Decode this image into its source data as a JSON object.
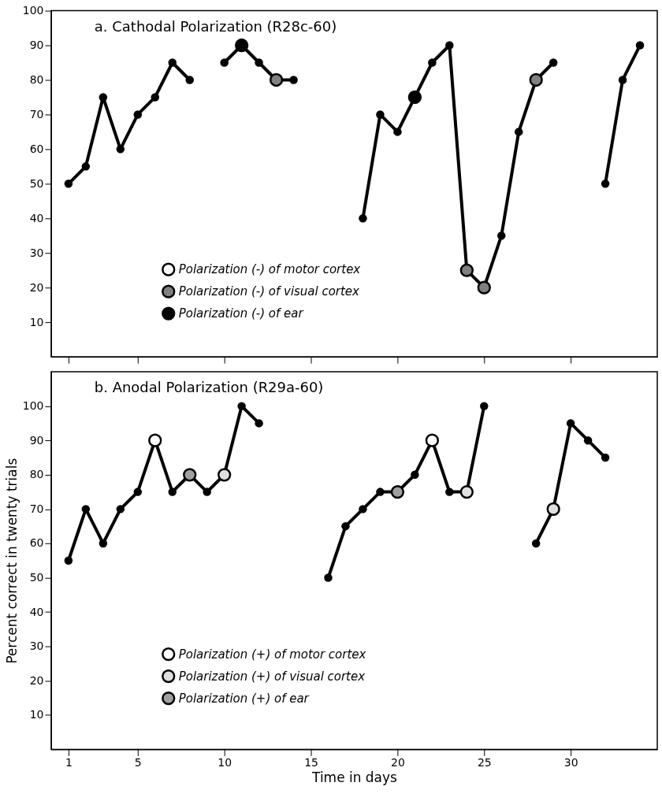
{
  "chart_data": [
    {
      "type": "line",
      "title": "a. Cathodal Polarization (R28c-60)",
      "x": [
        1,
        2,
        3,
        4,
        5,
        6,
        7,
        8,
        9,
        10,
        11,
        12,
        13,
        14,
        15,
        16,
        17,
        18,
        19,
        20,
        21,
        22,
        23,
        24,
        25,
        26,
        27,
        28,
        29,
        30,
        31,
        32,
        33,
        34
      ],
      "xlim": [
        0,
        35
      ],
      "xticks": [
        1,
        5,
        10,
        15,
        20,
        25,
        30
      ],
      "ylim": [
        0,
        100
      ],
      "yticks": [
        10,
        20,
        30,
        40,
        50,
        60,
        70,
        80,
        90,
        100
      ],
      "tick_labels": "y",
      "grid": false,
      "legend": "bottom left",
      "series": [
        {
          "type": "line",
          "color": "#000000",
          "marker": "circle",
          "values": [
            50,
            55,
            75,
            60,
            70,
            75,
            85,
            80,
            null,
            85,
            90,
            85,
            80,
            80,
            null,
            null,
            null,
            40,
            70,
            65,
            75,
            85,
            90,
            25,
            20,
            35,
            65,
            80,
            85,
            null,
            null,
            50,
            80,
            90
          ]
        },
        {
          "type": "scatter",
          "name": "Polarization (-) of motor cortex",
          "color": "#ffffff",
          "marker": "circle",
          "values": [
            null,
            null,
            null,
            null,
            null,
            null,
            null,
            null,
            null,
            null,
            null,
            null,
            null,
            null,
            null,
            null,
            null,
            null,
            null,
            null,
            null,
            null,
            null,
            null,
            null,
            null,
            null,
            null,
            null,
            null,
            null,
            null,
            null,
            null
          ]
        },
        {
          "type": "scatter",
          "name": "Polarization (-) of visual cortex",
          "color": "#808080",
          "marker": "circle",
          "x": [
            13,
            24,
            25,
            28
          ],
          "values": [
            80,
            25,
            20,
            80
          ]
        },
        {
          "type": "scatter",
          "name": "Polarization (-) of ear",
          "color": "#000000",
          "marker": "circle",
          "x": [
            11,
            21
          ],
          "values": [
            90,
            75
          ]
        }
      ]
    },
    {
      "type": "line",
      "title": "b. Anodal Polarization (R29a-60)",
      "xlabel": "Time in days",
      "ylabel": "Percent correct in twenty trials",
      "x": [
        1,
        2,
        3,
        4,
        5,
        6,
        7,
        8,
        9,
        10,
        11,
        12,
        13,
        14,
        15,
        16,
        17,
        18,
        19,
        20,
        21,
        22,
        23,
        24,
        25,
        26,
        27,
        28,
        29,
        30,
        31,
        32
      ],
      "xlim": [
        0,
        35
      ],
      "xticks": [
        1,
        5,
        10,
        15,
        20,
        25,
        30
      ],
      "ylim": [
        0,
        110
      ],
      "yticks": [
        10,
        20,
        30,
        40,
        50,
        60,
        70,
        80,
        90,
        100
      ],
      "grid": false,
      "legend": "bottom left",
      "series": [
        {
          "type": "line",
          "color": "#000000",
          "marker": "circle",
          "values": [
            55,
            70,
            60,
            70,
            75,
            90,
            75,
            80,
            75,
            80,
            100,
            95,
            null,
            null,
            null,
            50,
            65,
            70,
            75,
            75,
            80,
            90,
            75,
            75,
            100,
            null,
            null,
            60,
            70,
            95,
            90,
            85
          ]
        },
        {
          "type": "scatter",
          "name": "Polarization (+) of motor cortex",
          "color": "#ffffff",
          "marker": "circle",
          "x": [
            6,
            22
          ],
          "values": [
            90,
            90
          ]
        },
        {
          "type": "scatter",
          "name": "Polarization (+) of visual cortex",
          "color": "#e0e0e0",
          "marker": "circle",
          "x": [
            10,
            24,
            29
          ],
          "values": [
            80,
            75,
            70
          ]
        },
        {
          "type": "scatter",
          "name": "Polarization (+) of ear",
          "color": "#a0a0a0",
          "marker": "circle",
          "x": [
            8,
            20
          ],
          "values": [
            80,
            75
          ]
        }
      ]
    }
  ]
}
